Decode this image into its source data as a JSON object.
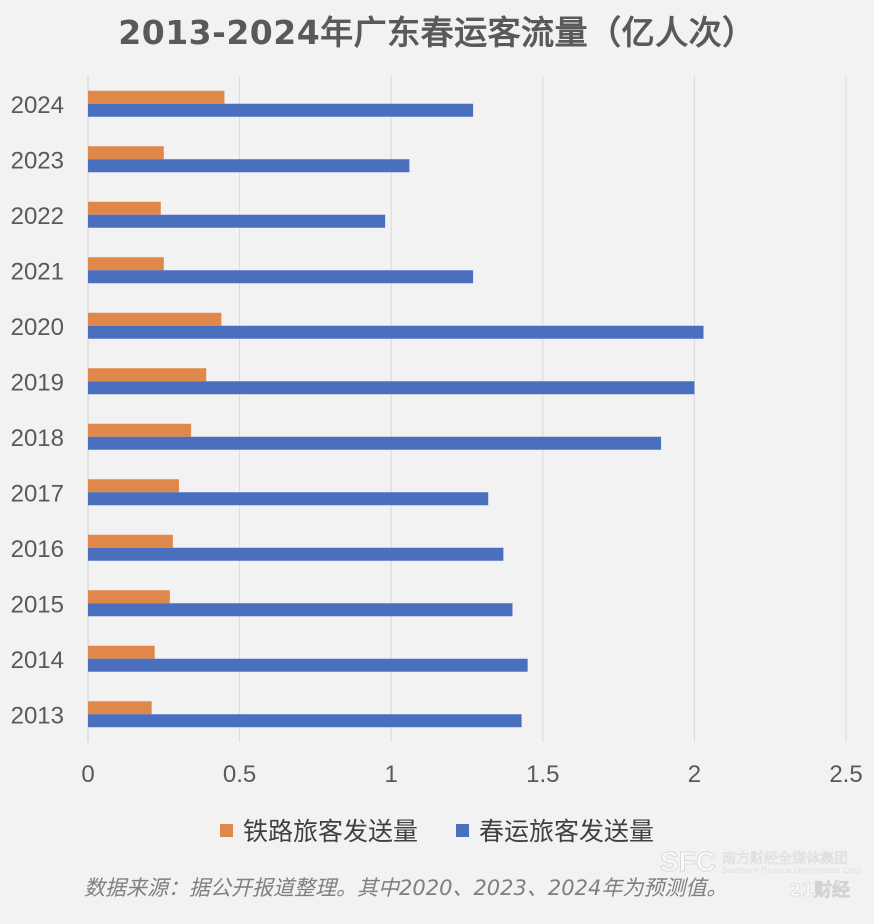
{
  "chart_data": {
    "type": "bar",
    "orientation": "horizontal",
    "title": "2013-2024年广东春运客流量（亿人次）",
    "categories": [
      "2024",
      "2023",
      "2022",
      "2021",
      "2020",
      "2019",
      "2018",
      "2017",
      "2016",
      "2015",
      "2014",
      "2013"
    ],
    "series": [
      {
        "name": "铁路旅客发送量",
        "color": "#e0884a",
        "values": [
          0.45,
          0.25,
          0.24,
          0.25,
          0.44,
          0.39,
          0.34,
          0.3,
          0.28,
          0.27,
          0.22,
          0.21
        ]
      },
      {
        "name": "春运旅客发送量",
        "color": "#4a6fbf",
        "values": [
          1.27,
          1.06,
          0.98,
          1.27,
          2.03,
          2.0,
          1.89,
          1.32,
          1.37,
          1.4,
          1.45,
          1.43
        ]
      }
    ],
    "xlim": [
      0,
      2.5
    ],
    "xticks": [
      "0",
      "0.5",
      "1",
      "1.5",
      "2",
      "2.5"
    ],
    "grid": true,
    "legend_position": "bottom",
    "xlabel": "",
    "ylabel": ""
  },
  "source_note": "数据来源：据公开报道整理。其中2020、2023、2024年为预测值。",
  "watermark": {
    "logo": "SFC",
    "group": "南方财经全媒体集团",
    "english": "Southern Finance Omnimedia Corp",
    "brand": "21财经"
  }
}
